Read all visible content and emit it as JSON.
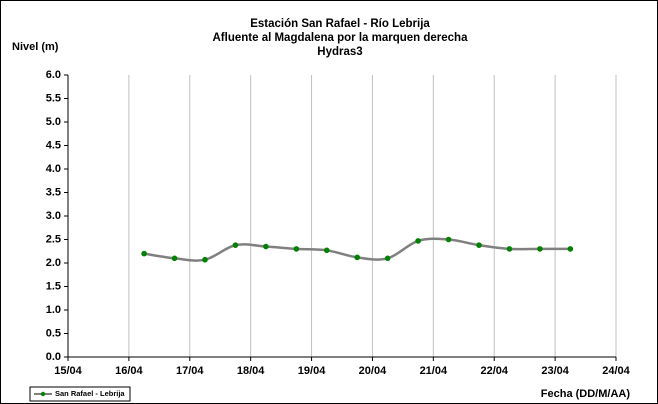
{
  "chart_data": {
    "type": "line",
    "title": [
      "Estación San Rafael - Río Lebrija",
      "Afluente al Magdalena por la marquen derecha",
      "Hydras3"
    ],
    "y_label": "Nivel (m)",
    "x_label": "Fecha (DD/M/AA)",
    "x": [
      16.25,
      16.75,
      17.25,
      17.75,
      18.25,
      18.75,
      19.25,
      19.75,
      20.25,
      20.75,
      21.25,
      21.75,
      22.25,
      22.75,
      23.25
    ],
    "series": [
      {
        "name": "San Rafael - Lebrija",
        "color": "#808080",
        "marker_color": "#008000",
        "values": [
          2.2,
          2.1,
          2.07,
          2.38,
          2.35,
          2.3,
          2.27,
          2.12,
          2.1,
          2.47,
          2.5,
          2.38,
          2.3,
          2.3,
          2.3
        ]
      }
    ],
    "xlim": [
      15,
      24
    ],
    "xticks": [
      {
        "value": 15,
        "label": "15/04"
      },
      {
        "value": 16,
        "label": "16/04"
      },
      {
        "value": 17,
        "label": "17/04"
      },
      {
        "value": 18,
        "label": "18/04"
      },
      {
        "value": 19,
        "label": "19/04"
      },
      {
        "value": 20,
        "label": "20/04"
      },
      {
        "value": 21,
        "label": "21/04"
      },
      {
        "value": 22,
        "label": "22/04"
      },
      {
        "value": 23,
        "label": "23/04"
      },
      {
        "value": 24,
        "label": "24/04"
      }
    ],
    "ylim": [
      0,
      6
    ],
    "yticks": [
      {
        "value": 0,
        "label": "0.0"
      },
      0.5,
      {
        "value": 1,
        "label": "1.0"
      },
      1.5,
      {
        "value": 2,
        "label": "2.0"
      },
      2.5,
      {
        "value": 3,
        "label": "3.0"
      },
      3.5,
      {
        "value": 4,
        "label": "4.0"
      },
      4.5,
      {
        "value": 5,
        "label": "5.0"
      },
      5.5,
      {
        "value": 6,
        "label": "6.0"
      }
    ],
    "grid": "x",
    "legend": "bottom-left"
  }
}
